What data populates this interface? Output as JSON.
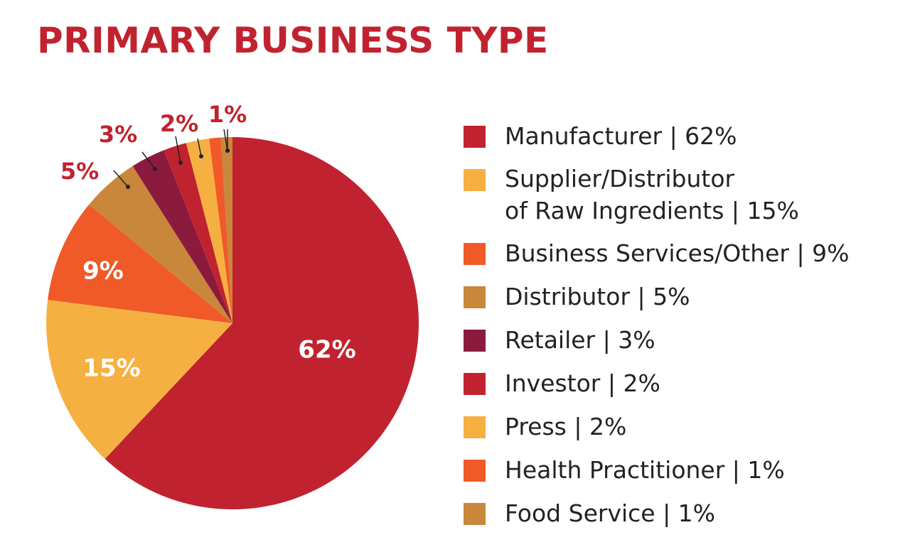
{
  "title": "PRIMARY BUSINESS TYPE",
  "chart_data": {
    "type": "pie",
    "title": "PRIMARY BUSINESS TYPE",
    "legend_position": "right",
    "slices": [
      {
        "name": "Manufacturer",
        "legend": "Manufacturer | 62%",
        "value": 62,
        "label": "62%",
        "color": "#c0232f"
      },
      {
        "name": "Supplier/Distributor of Raw Ingredients",
        "legend": "Supplier/Distributor\nof Raw Ingredients | 15%",
        "value": 15,
        "label": "15%",
        "color": "#f5b041"
      },
      {
        "name": "Business Services/Other",
        "legend": "Business Services/Other | 9%",
        "value": 9,
        "label": "9%",
        "color": "#ef5a28"
      },
      {
        "name": "Distributor",
        "legend": "Distributor | 5%",
        "value": 5,
        "label": "5%",
        "color": "#c8873a"
      },
      {
        "name": "Retailer",
        "legend": "Retailer | 3%",
        "value": 3,
        "label": "3%",
        "color": "#8c1a3f"
      },
      {
        "name": "Investor",
        "legend": "Investor | 2%",
        "value": 2,
        "label": "2%",
        "color": "#c0232f"
      },
      {
        "name": "Press",
        "legend": "Press | 2%",
        "value": 2,
        "label": "2%",
        "color": "#f5b041"
      },
      {
        "name": "Health Practitioner",
        "legend": "Health Practitioner | 1%",
        "value": 1,
        "label": "1%",
        "color": "#ef5a28"
      },
      {
        "name": "Food Service",
        "legend": "Food Service | 1%",
        "value": 1,
        "label": "1%",
        "color": "#c8873a"
      }
    ],
    "label_colors": {
      "inside": "#ffffff",
      "outside": "#c0232f",
      "leader": "#222222"
    }
  }
}
